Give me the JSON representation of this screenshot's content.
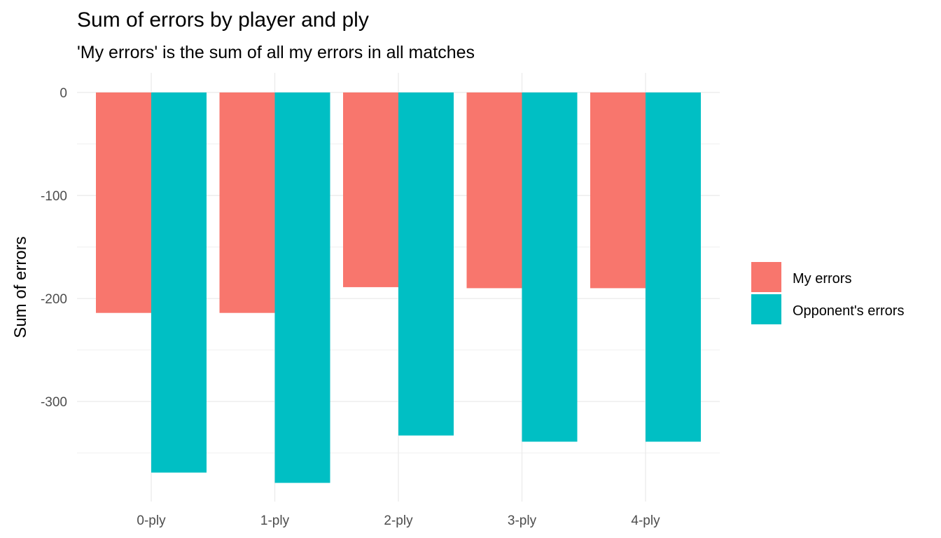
{
  "chart_data": {
    "type": "bar",
    "title": "Sum of errors by player and ply",
    "subtitle": "'My errors' is the sum of all my errors in all matches",
    "xlabel": "",
    "ylabel": "Sum of errors",
    "categories": [
      "0-ply",
      "1-ply",
      "2-ply",
      "3-ply",
      "4-ply"
    ],
    "series": [
      {
        "name": "My errors",
        "color": "#F8766D",
        "values": [
          -214,
          -214,
          -189,
          -190,
          -190
        ]
      },
      {
        "name": "Opponent's errors",
        "color": "#00BFC4",
        "values": [
          -369,
          -379,
          -333,
          -339,
          -339
        ]
      }
    ],
    "ylim": [
      -390,
      0
    ],
    "yticks": [
      0,
      -100,
      -200,
      -300
    ],
    "ytick_labels": [
      "0",
      "-100",
      "-200",
      "-300"
    ],
    "grid": true,
    "legend_position": "right"
  }
}
